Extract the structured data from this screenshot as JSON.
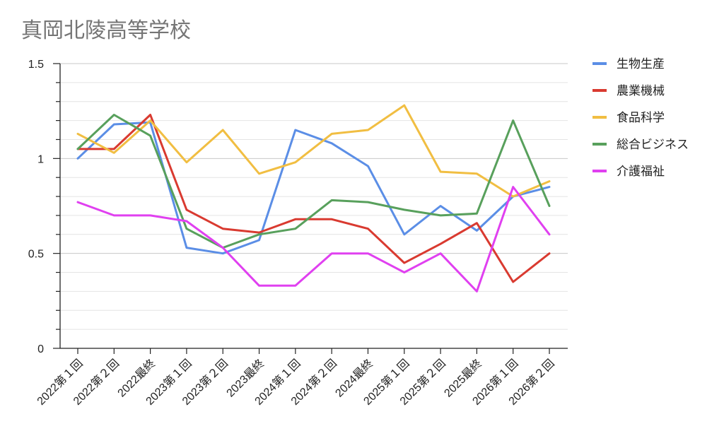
{
  "chart_data": {
    "type": "line",
    "title": "真岡北陵高等学校",
    "xlabel": "",
    "ylabel": "",
    "ylim": [
      0,
      1.5
    ],
    "y_ticks": [
      "0",
      "0.5",
      "1",
      "1.5"
    ],
    "grid": true,
    "legend_position": "right",
    "categories": [
      "2022第１回",
      "2022第２回",
      "2022最終",
      "2023第１回",
      "2023第２回",
      "2023最終",
      "2024第１回",
      "2024第２回",
      "2024最終",
      "2025第１回",
      "2025第２回",
      "2025最終",
      "2026第１回",
      "2026第２回"
    ],
    "series": [
      {
        "name": "生物生産",
        "color": "#5b8ee6",
        "values": [
          1.0,
          1.18,
          1.19,
          0.53,
          0.5,
          0.57,
          1.15,
          1.08,
          0.96,
          0.6,
          0.75,
          0.62,
          0.8,
          0.85
        ]
      },
      {
        "name": "農業機械",
        "color": "#d93a30",
        "values": [
          1.05,
          1.05,
          1.23,
          0.73,
          0.63,
          0.61,
          0.68,
          0.68,
          0.63,
          0.45,
          0.55,
          0.66,
          0.35,
          0.5
        ]
      },
      {
        "name": "食品科学",
        "color": "#f1be42",
        "values": [
          1.13,
          1.03,
          1.2,
          0.98,
          1.15,
          0.92,
          0.98,
          1.13,
          1.15,
          1.28,
          0.93,
          0.92,
          0.8,
          0.88
        ]
      },
      {
        "name": "総合ビジネス",
        "color": "#58a05c",
        "values": [
          1.05,
          1.23,
          1.12,
          0.63,
          0.53,
          0.6,
          0.63,
          0.78,
          0.77,
          0.73,
          0.7,
          0.71,
          1.2,
          0.75
        ]
      },
      {
        "name": "介護福祉",
        "color": "#e040f0",
        "values": [
          0.77,
          0.7,
          0.7,
          0.67,
          0.53,
          0.33,
          0.33,
          0.5,
          0.5,
          0.4,
          0.5,
          0.3,
          0.85,
          0.6
        ]
      }
    ]
  }
}
